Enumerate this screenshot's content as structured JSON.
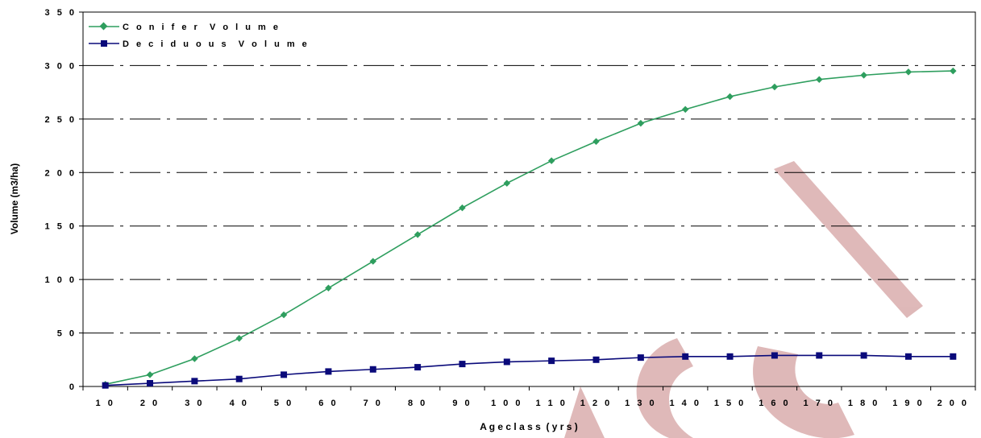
{
  "chart_data": {
    "type": "line",
    "title": "",
    "xlabel": "A g e c l a s s  ( y r s )",
    "ylabel": "Volume (m3/ha)",
    "categories": [
      "1 0",
      "2 0",
      "3 0",
      "4 0",
      "5 0",
      "6 0",
      "7 0",
      "8 0",
      "9 0",
      "1 0 0",
      "1 1 0",
      "1 2 0",
      "1 3 0",
      "1 4 0",
      "1 5 0",
      "1 6 0",
      "1 7 0",
      "1 8 0",
      "1 9 0",
      "2 0 0"
    ],
    "y_ticks": [
      "0",
      "5 0",
      "1 0 0",
      "1 5 0",
      "2 0 0",
      "2 5 0",
      "3 0 0",
      "3 5 0"
    ],
    "ylim": [
      0,
      350
    ],
    "grid": "horizontal dash-dot",
    "legend_position": "top-left",
    "series": [
      {
        "name": "C o n i f e r  V o l u m e",
        "color": "#2e9e5e",
        "marker": "diamond",
        "values": [
          2,
          11,
          26,
          45,
          67,
          92,
          117,
          142,
          167,
          190,
          211,
          229,
          246,
          259,
          271,
          280,
          287,
          291,
          294,
          295
        ]
      },
      {
        "name": "D e c i d u o u s  V o l u m e",
        "color": "#0a0a7a",
        "marker": "square",
        "values": [
          1,
          3,
          5,
          7,
          11,
          14,
          16,
          18,
          21,
          23,
          24,
          25,
          27,
          28,
          28,
          29,
          29,
          29,
          28,
          28
        ]
      }
    ]
  },
  "watermark": {
    "text": "Superseded",
    "color": "#c98a8a"
  }
}
